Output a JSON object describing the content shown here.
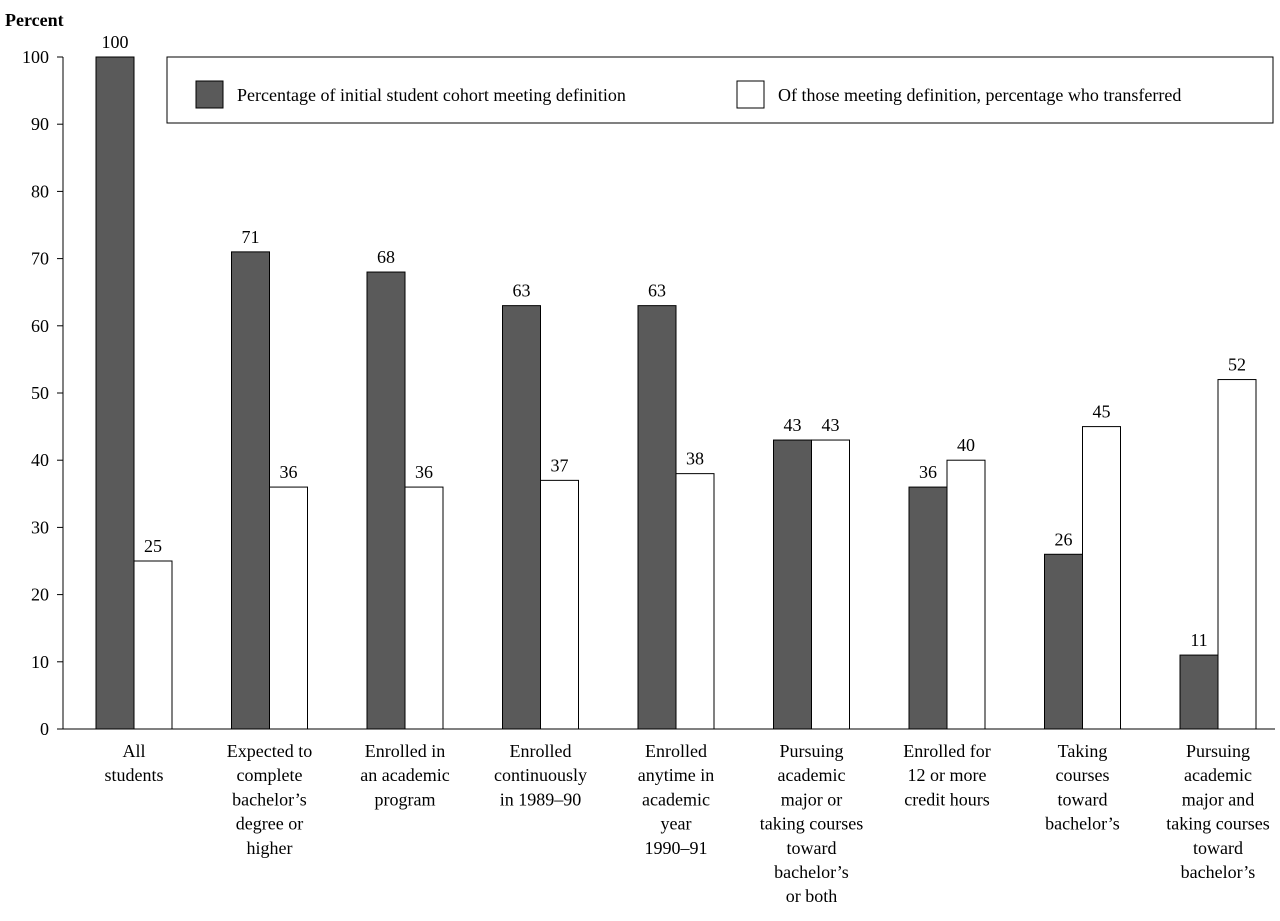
{
  "chart_data": {
    "type": "bar",
    "ylabel": "Percent",
    "ylim": [
      0,
      100
    ],
    "yticks": [
      0,
      10,
      20,
      30,
      40,
      50,
      60,
      70,
      80,
      90,
      100
    ],
    "grid": false,
    "legend_position": "top-right",
    "categories": [
      [
        "All",
        "students"
      ],
      [
        "Expected to",
        "complete",
        "bachelor’s",
        "degree or",
        "higher"
      ],
      [
        "Enrolled in",
        "an academic",
        "program"
      ],
      [
        "Enrolled",
        "continuously",
        "in 1989–90"
      ],
      [
        "Enrolled",
        "anytime in",
        "academic",
        "year",
        "1990–91"
      ],
      [
        "Pursuing",
        "academic",
        "major or",
        "taking courses",
        "toward",
        "bachelor’s",
        "or both"
      ],
      [
        "Enrolled for",
        "12 or more",
        "credit hours"
      ],
      [
        "Taking",
        "courses",
        "toward",
        "bachelor’s"
      ],
      [
        "Pursuing",
        "academic",
        "major and",
        "taking courses",
        "toward",
        "bachelor’s"
      ]
    ],
    "series": [
      {
        "name": "Percentage of initial student cohort meeting definition",
        "color": "#5a5a5a",
        "values": [
          100,
          71,
          68,
          63,
          63,
          43,
          36,
          26,
          11
        ]
      },
      {
        "name": "Of those meeting definition, percentage who transferred",
        "color": "#ffffff",
        "values": [
          25,
          36,
          36,
          37,
          38,
          43,
          40,
          45,
          52
        ]
      }
    ]
  }
}
